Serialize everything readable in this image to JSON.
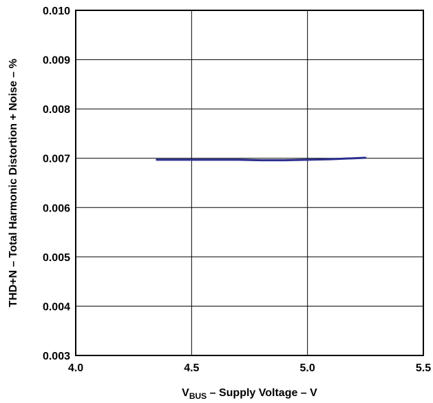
{
  "chart_data": {
    "type": "line",
    "title": "",
    "xlabel": {
      "prefix": "V",
      "subscript": "BUS",
      "suffix": " – Supply Voltage – V"
    },
    "ylabel": "THD+N – Total Harmonic Distortion + Noise – %",
    "xlim": [
      4.0,
      5.5
    ],
    "ylim": [
      0.003,
      0.01
    ],
    "x_ticks": [
      "4.0",
      "4.5",
      "5.0",
      "5.5"
    ],
    "y_ticks": [
      "0.003",
      "0.004",
      "0.005",
      "0.006",
      "0.007",
      "0.008",
      "0.009",
      "0.010"
    ],
    "grid": true,
    "legend": "none",
    "series": [
      {
        "color": "#2b2f8f",
        "x": [
          4.35,
          4.5,
          4.6,
          4.7,
          4.8,
          4.9,
          5.0,
          5.1,
          5.2,
          5.25
        ],
        "y": [
          0.00697,
          0.00697,
          0.00697,
          0.00697,
          0.00696,
          0.00696,
          0.00697,
          0.00698,
          0.007,
          0.00701
        ]
      }
    ]
  }
}
